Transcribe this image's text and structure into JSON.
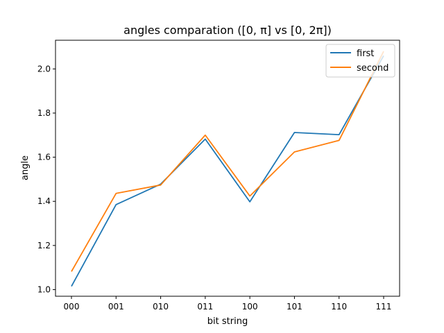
{
  "chart_data": {
    "type": "line",
    "title": "angles comparation ([0, π] vs [0, 2π])",
    "xlabel": "bit string",
    "ylabel": "angle",
    "categories": [
      "000",
      "001",
      "010",
      "011",
      "100",
      "101",
      "110",
      "111"
    ],
    "ylim": [
      0.97,
      2.13
    ],
    "yticks": [
      "1.0",
      "1.2",
      "1.4",
      "1.6",
      "1.8",
      "2.0"
    ],
    "grid": false,
    "legend_position": "top-right",
    "series": [
      {
        "name": "first",
        "color": "#1f77b4",
        "values": [
          1.015,
          1.385,
          1.478,
          1.682,
          1.398,
          1.712,
          1.702,
          2.06
        ]
      },
      {
        "name": "second",
        "color": "#ff7f0e",
        "values": [
          1.082,
          1.436,
          1.474,
          1.7,
          1.424,
          1.624,
          1.676,
          2.08
        ]
      }
    ]
  }
}
